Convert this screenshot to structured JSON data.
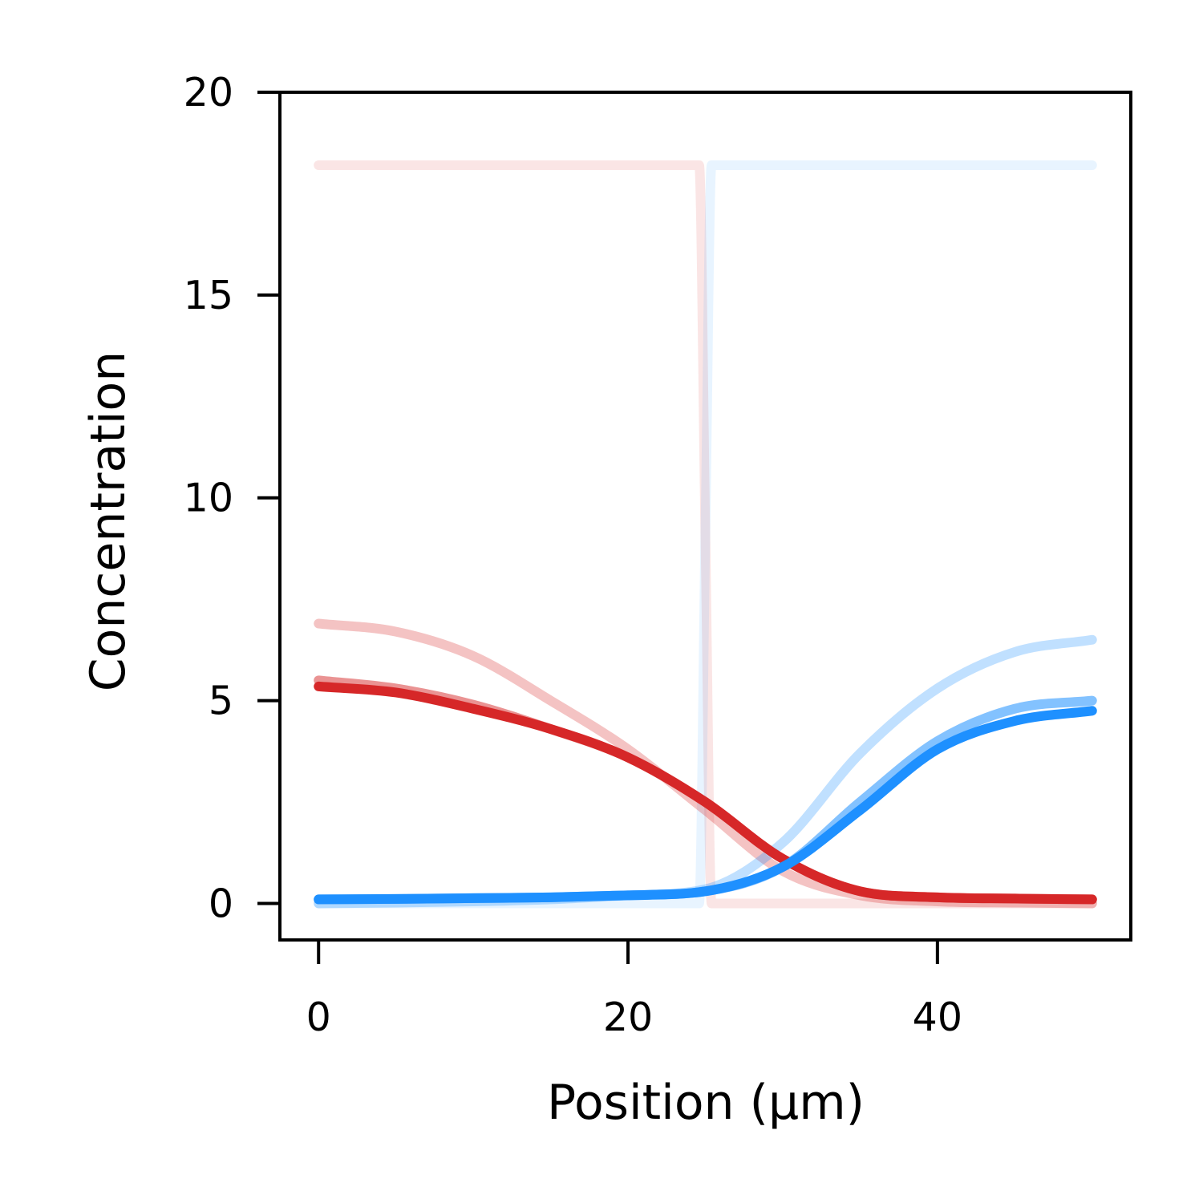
{
  "chart_data": {
    "type": "line",
    "title": "",
    "xlabel": "Position (µm)",
    "ylabel": "Concentration",
    "xlim": [
      -2.5,
      52.5
    ],
    "ylim": [
      -0.9,
      20
    ],
    "xticks": [
      0,
      20,
      40
    ],
    "yticks": [
      0,
      5,
      10,
      15,
      20
    ],
    "grid": false,
    "legend": "none",
    "series": [
      {
        "color": "#d62728",
        "opacity": 0.12,
        "x": [
          0,
          24.6,
          25.0,
          25.4,
          50
        ],
        "y": [
          18.2,
          18.2,
          9.1,
          0.0,
          0.0
        ]
      },
      {
        "color": "#1e90ff",
        "opacity": 0.1,
        "x": [
          0,
          24.6,
          25.0,
          25.4,
          50
        ],
        "y": [
          0.0,
          0.0,
          9.1,
          18.2,
          18.2
        ]
      },
      {
        "color": "#d62728",
        "opacity": 0.28,
        "x": [
          0,
          5,
          10,
          15,
          20,
          25,
          30,
          35,
          40,
          45,
          50
        ],
        "y": [
          6.9,
          6.7,
          6.1,
          5.0,
          3.8,
          2.3,
          0.8,
          0.2,
          0.05,
          0.02,
          0.0
        ]
      },
      {
        "color": "#1e90ff",
        "opacity": 0.28,
        "x": [
          0,
          5,
          10,
          15,
          20,
          25,
          30,
          35,
          40,
          45,
          50
        ],
        "y": [
          0.0,
          0.02,
          0.05,
          0.1,
          0.2,
          0.35,
          1.5,
          3.7,
          5.3,
          6.2,
          6.5
        ]
      },
      {
        "color": "#d62728",
        "opacity": 0.5,
        "x": [
          0,
          5,
          10,
          15,
          20,
          25,
          30,
          35,
          40,
          45,
          50
        ],
        "y": [
          5.5,
          5.3,
          4.9,
          4.3,
          3.6,
          2.5,
          1.1,
          0.3,
          0.15,
          0.12,
          0.1
        ]
      },
      {
        "color": "#1e90ff",
        "opacity": 0.55,
        "x": [
          0,
          5,
          10,
          15,
          20,
          25,
          30,
          35,
          40,
          45,
          50
        ],
        "y": [
          0.1,
          0.11,
          0.13,
          0.15,
          0.2,
          0.3,
          0.9,
          2.5,
          4.0,
          4.8,
          5.0
        ]
      },
      {
        "color": "#d62728",
        "opacity": 1,
        "x": [
          0,
          5,
          10,
          15,
          20,
          25,
          30,
          35,
          40,
          45,
          50
        ],
        "y": [
          5.35,
          5.2,
          4.8,
          4.3,
          3.6,
          2.5,
          1.1,
          0.3,
          0.15,
          0.12,
          0.1
        ]
      },
      {
        "color": "#1e90ff",
        "opacity": 1,
        "x": [
          0,
          5,
          10,
          15,
          20,
          25,
          30,
          35,
          40,
          45,
          50
        ],
        "y": [
          0.1,
          0.11,
          0.13,
          0.15,
          0.2,
          0.3,
          0.9,
          2.3,
          3.8,
          4.5,
          4.75
        ]
      }
    ]
  }
}
